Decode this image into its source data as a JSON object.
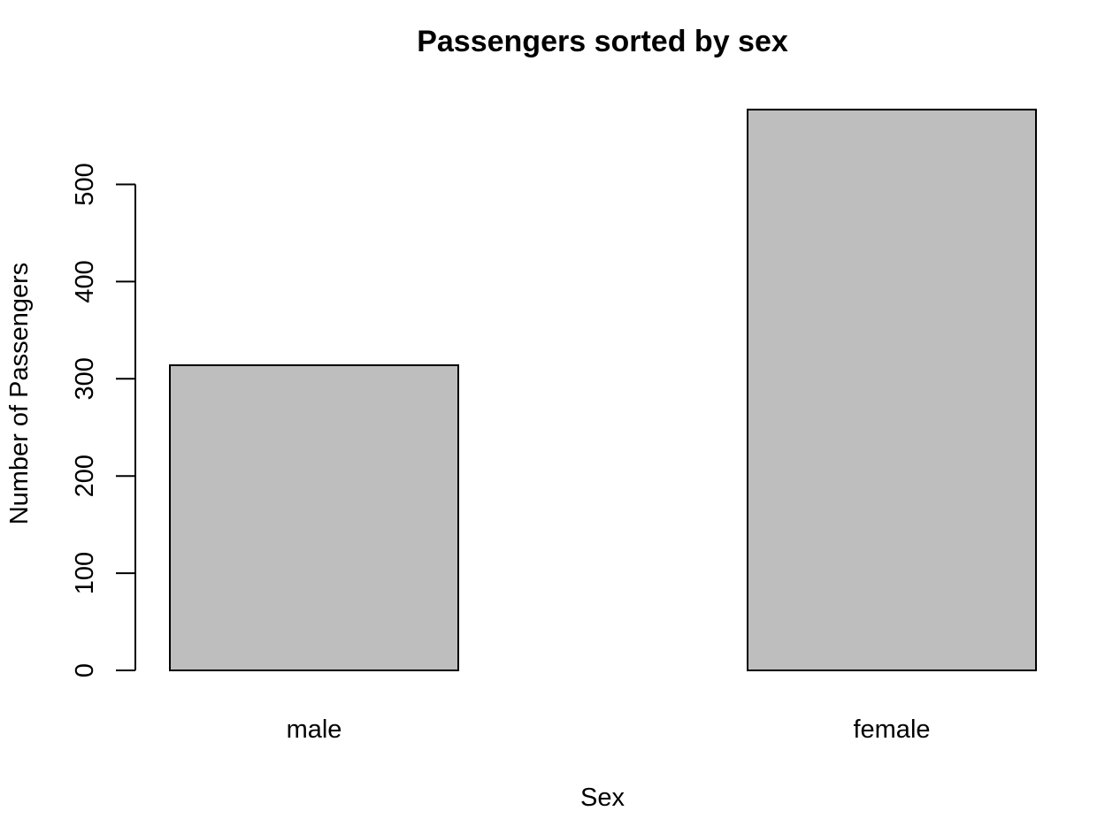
{
  "chart_data": {
    "type": "bar",
    "title": "Passengers sorted by sex",
    "xlabel": "Sex",
    "ylabel": "Number of Passengers",
    "categories": [
      "male",
      "female"
    ],
    "values": [
      314,
      577
    ],
    "yticks": [
      0,
      100,
      200,
      300,
      400,
      500
    ],
    "ylim": [
      0,
      577
    ],
    "bar_color": "#bebebe",
    "grid": false,
    "legend": "none"
  }
}
